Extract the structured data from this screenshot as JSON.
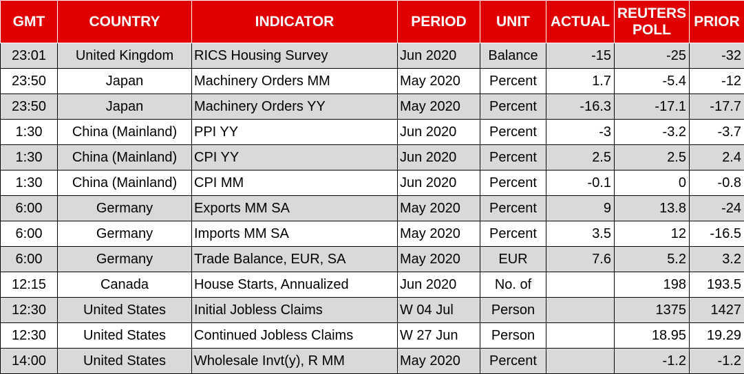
{
  "table": {
    "header": [
      "GMT",
      "COUNTRY",
      "INDICATOR",
      "PERIOD",
      "UNIT",
      "ACTUAL",
      "REUTERS POLL",
      "PRIOR"
    ],
    "rows": [
      [
        "23:01",
        "United Kingdom",
        "RICS Housing Survey",
        "Jun 2020",
        "Balance",
        "-15",
        "-25",
        "-32"
      ],
      [
        "23:50",
        "Japan",
        "Machinery Orders MM",
        "May 2020",
        "Percent",
        "1.7",
        "-5.4",
        "-12"
      ],
      [
        "23:50",
        "Japan",
        "Machinery Orders YY",
        "May 2020",
        "Percent",
        "-16.3",
        "-17.1",
        "-17.7"
      ],
      [
        "1:30",
        "China (Mainland)",
        "PPI YY",
        "Jun 2020",
        "Percent",
        "-3",
        "-3.2",
        "-3.7"
      ],
      [
        "1:30",
        "China (Mainland)",
        "CPI YY",
        "Jun 2020",
        "Percent",
        "2.5",
        "2.5",
        "2.4"
      ],
      [
        "1:30",
        "China (Mainland)",
        "CPI MM",
        "Jun 2020",
        "Percent",
        "-0.1",
        "0",
        "-0.8"
      ],
      [
        "6:00",
        "Germany",
        "Exports MM SA",
        "May 2020",
        "Percent",
        "9",
        "13.8",
        "-24"
      ],
      [
        "6:00",
        "Germany",
        "Imports MM SA",
        "May 2020",
        "Percent",
        "3.5",
        "12",
        "-16.5"
      ],
      [
        "6:00",
        "Germany",
        "Trade Balance, EUR, SA",
        "May 2020",
        "EUR",
        "7.6",
        "5.2",
        "3.2"
      ],
      [
        "12:15",
        "Canada",
        "House Starts, Annualized",
        "Jun 2020",
        "No. of",
        null,
        "198",
        "193.5"
      ],
      [
        "12:30",
        "United States",
        "Initial Jobless Claims",
        "W 04 Jul",
        "Person",
        null,
        "1375",
        "1427"
      ],
      [
        "12:30",
        "United States",
        "Continued Jobless Claims",
        "W 27 Jun",
        "Person",
        null,
        "18.95",
        "19.29"
      ],
      [
        "14:00",
        "United States",
        "Wholesale Invt(y), R MM",
        "May 2020",
        "Percent",
        null,
        "-1.2",
        "-1.2"
      ]
    ]
  }
}
